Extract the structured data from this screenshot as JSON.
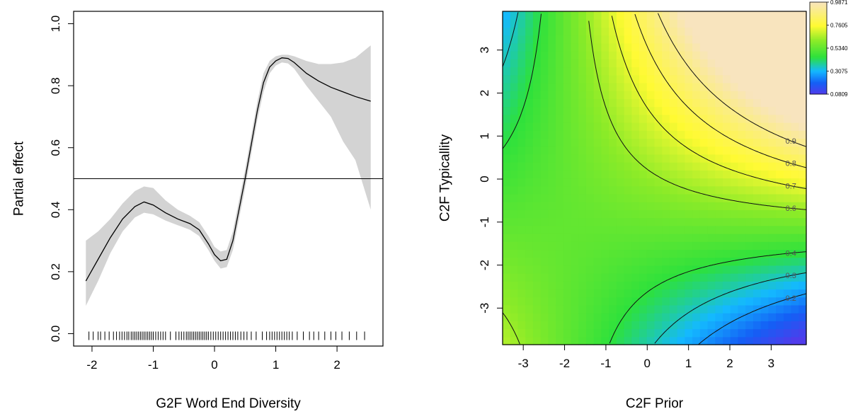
{
  "chart_data": [
    {
      "type": "line",
      "xlabel": "G2F Word End Diversity",
      "ylabel": "Partial effect",
      "xlim": [
        -2.3,
        2.75
      ],
      "ylim": [
        -0.04,
        1.04
      ],
      "xticks": [
        "-2",
        "-1",
        "0",
        "1",
        "2"
      ],
      "xtick_values": [
        -2,
        -1,
        0,
        1,
        2
      ],
      "yticks": [
        "0.0",
        "0.2",
        "0.4",
        "0.6",
        "0.8",
        "1.0"
      ],
      "ytick_values": [
        0,
        0.2,
        0.4,
        0.6,
        0.8,
        1.0
      ],
      "reference_line": 0.5,
      "band_color": "#d3d3d3",
      "line_color": "#000000",
      "series": [
        {
          "x": [
            -2.1,
            -1.9,
            -1.7,
            -1.5,
            -1.3,
            -1.15,
            -1.0,
            -0.8,
            -0.6,
            -0.4,
            -0.25,
            -0.1,
            0.0,
            0.1,
            0.2,
            0.3,
            0.4,
            0.5,
            0.6,
            0.7,
            0.8,
            0.9,
            1.0,
            1.1,
            1.2,
            1.3,
            1.5,
            1.7,
            1.9,
            2.1,
            2.3,
            2.55
          ],
          "y": [
            0.17,
            0.24,
            0.31,
            0.37,
            0.41,
            0.425,
            0.415,
            0.39,
            0.37,
            0.355,
            0.335,
            0.29,
            0.255,
            0.235,
            0.24,
            0.3,
            0.4,
            0.5,
            0.61,
            0.72,
            0.81,
            0.86,
            0.88,
            0.89,
            0.888,
            0.875,
            0.84,
            0.815,
            0.795,
            0.78,
            0.765,
            0.75
          ],
          "lower": [
            0.09,
            0.17,
            0.26,
            0.33,
            0.375,
            0.39,
            0.385,
            0.365,
            0.35,
            0.335,
            0.315,
            0.27,
            0.235,
            0.21,
            0.215,
            0.27,
            0.37,
            0.47,
            0.58,
            0.69,
            0.78,
            0.84,
            0.865,
            0.875,
            0.872,
            0.855,
            0.8,
            0.75,
            0.7,
            0.62,
            0.56,
            0.4
          ],
          "upper": [
            0.3,
            0.33,
            0.37,
            0.42,
            0.46,
            0.475,
            0.47,
            0.43,
            0.4,
            0.38,
            0.36,
            0.315,
            0.28,
            0.265,
            0.27,
            0.33,
            0.43,
            0.53,
            0.64,
            0.75,
            0.84,
            0.88,
            0.895,
            0.9,
            0.9,
            0.895,
            0.88,
            0.87,
            0.87,
            0.875,
            0.89,
            0.93
          ]
        }
      ],
      "rug": [
        -2.05,
        -1.98,
        -1.9,
        -1.86,
        -1.79,
        -1.72,
        -1.65,
        -1.6,
        -1.55,
        -1.51,
        -1.47,
        -1.43,
        -1.4,
        -1.36,
        -1.33,
        -1.3,
        -1.27,
        -1.24,
        -1.21,
        -1.18,
        -1.15,
        -1.12,
        -1.09,
        -1.06,
        -1.03,
        -1.0,
        -0.96,
        -0.92,
        -0.88,
        -0.84,
        -0.8,
        -0.72,
        -0.63,
        -0.58,
        -0.54,
        -0.5,
        -0.46,
        -0.43,
        -0.4,
        -0.37,
        -0.34,
        -0.31,
        -0.28,
        -0.25,
        -0.22,
        -0.19,
        -0.16,
        -0.13,
        -0.1,
        -0.06,
        -0.02,
        0.02,
        0.06,
        0.1,
        0.14,
        0.18,
        0.22,
        0.26,
        0.3,
        0.34,
        0.38,
        0.43,
        0.48,
        0.53,
        0.6,
        0.68,
        0.78,
        0.85,
        0.9,
        0.94,
        0.98,
        1.02,
        1.06,
        1.1,
        1.14,
        1.18,
        1.22,
        1.27,
        1.35,
        1.45,
        1.55,
        1.62,
        1.7,
        1.8,
        1.9,
        1.98,
        2.08,
        2.2,
        2.32,
        2.45
      ]
    },
    {
      "type": "heatmap",
      "xlabel": "C2F Prior",
      "ylabel": "C2F Typicallity",
      "xlim": [
        -3.5,
        3.85
      ],
      "ylim": [
        -3.85,
        3.9
      ],
      "xticks": [
        "-3",
        "-2",
        "-1",
        "0",
        "1",
        "2",
        "3"
      ],
      "xtick_values": [
        -3,
        -2,
        -1,
        0,
        1,
        2,
        3
      ],
      "yticks": [
        "-3",
        "-2",
        "-1",
        "0",
        "1",
        "2",
        "3"
      ],
      "ytick_values": [
        -3,
        -2,
        -1,
        0,
        1,
        2,
        3
      ],
      "colorbar": {
        "labels": [
          "0.9871",
          "0.7605",
          "0.5340",
          "0.3075",
          "0.0809"
        ],
        "values": [
          0.9871,
          0.7605,
          0.534,
          0.3075,
          0.0809
        ],
        "colors": [
          "#5050f0",
          "#14b4ff",
          "#32e632",
          "#ffff32",
          "#fae6c3"
        ]
      },
      "contours": [
        {
          "label": "0.9",
          "level": 0.9
        },
        {
          "label": "0.8",
          "level": 0.8
        },
        {
          "label": "0.7",
          "level": 0.7
        },
        {
          "label": "0.6",
          "level": 0.6
        },
        {
          "label": "0.5",
          "level": 0.5
        },
        {
          "label": "0.4",
          "level": 0.4
        },
        {
          "label": "0.3",
          "level": 0.3
        },
        {
          "label": "0.2",
          "level": 0.2
        }
      ]
    }
  ]
}
